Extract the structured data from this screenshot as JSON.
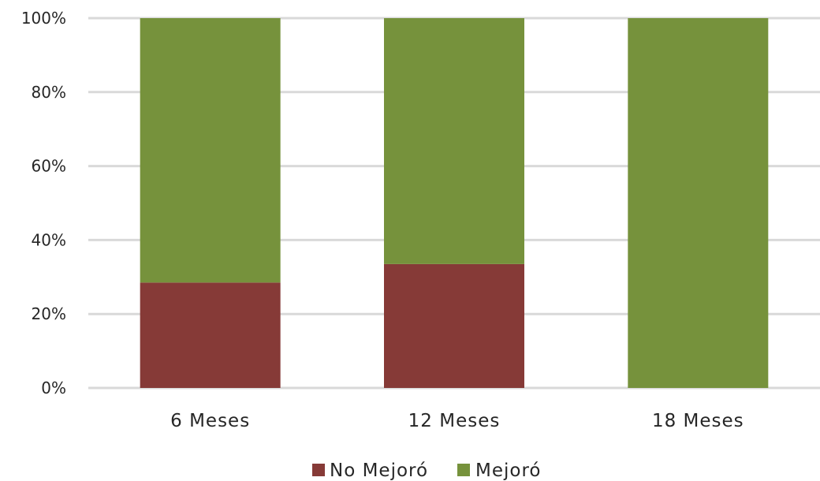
{
  "chart_data": {
    "type": "bar",
    "stacked": true,
    "percent": true,
    "categories": [
      "6 Meses",
      "12 Meses",
      "18 Meses"
    ],
    "series": [
      {
        "name": "No Mejoró",
        "color": "#863a37",
        "values": [
          28.5,
          33.5,
          0
        ]
      },
      {
        "name": "Mejoró",
        "color": "#76923c",
        "values": [
          71.5,
          66.5,
          100
        ]
      }
    ],
    "ylim": [
      0,
      100
    ],
    "yticks": [
      "0%",
      "20%",
      "40%",
      "60%",
      "80%",
      "100%"
    ],
    "ytick_values": [
      0,
      20,
      40,
      60,
      80,
      100
    ],
    "grid": true,
    "gridline_color": "#d9d9d9",
    "legend_position": "bottom",
    "title": "",
    "xlabel": "",
    "ylabel": ""
  }
}
